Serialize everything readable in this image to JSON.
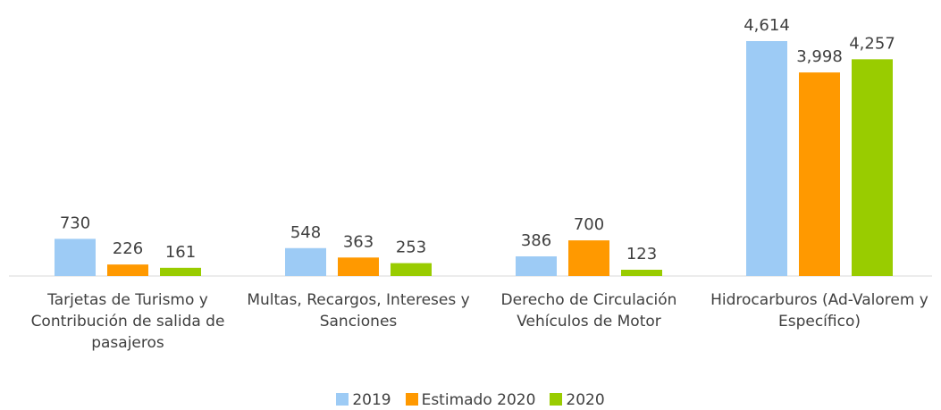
{
  "chart_data": {
    "type": "bar",
    "categories": [
      "Tarjetas de Turismo y Contribución de salida de pasajeros",
      "Multas, Recargos, Intereses y Sanciones",
      "Derecho de Circulación Vehículos de Motor",
      "Hidrocarburos (Ad-Valorem y Específico)"
    ],
    "series": [
      {
        "name": "2019",
        "color": "#9dcbf5",
        "values": [
          730,
          548,
          386,
          4614
        ],
        "value_labels": [
          "730",
          "548",
          "386",
          "4,614"
        ]
      },
      {
        "name": "Estimado 2020",
        "color": "#ff9900",
        "values": [
          226,
          363,
          700,
          3998
        ],
        "value_labels": [
          "226",
          "363",
          "700",
          "3,998"
        ]
      },
      {
        "name": "2020",
        "color": "#99cc00",
        "values": [
          161,
          253,
          123,
          4257
        ],
        "value_labels": [
          "161",
          "253",
          "123",
          "4,257"
        ]
      }
    ],
    "legend": "bottom"
  }
}
